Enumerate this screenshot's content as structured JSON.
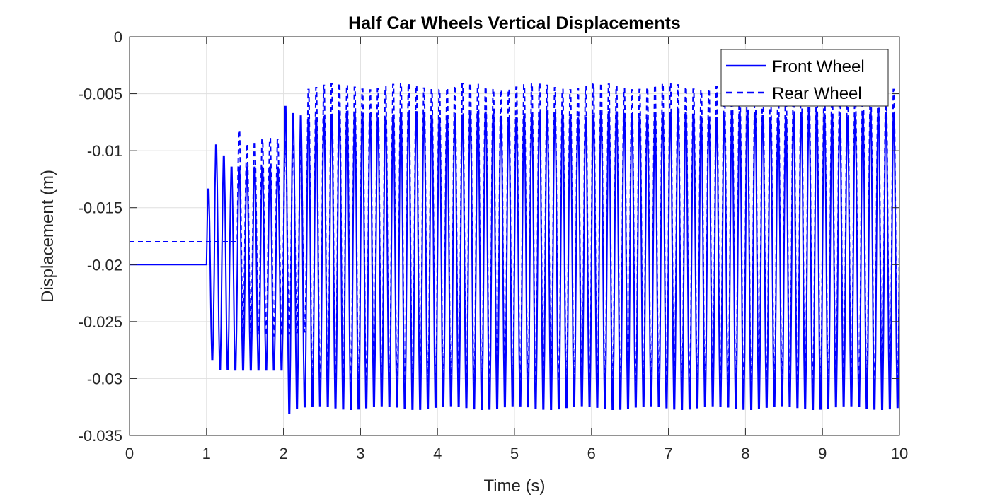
{
  "chart_data": {
    "type": "line",
    "title": "Half Car Wheels Vertical Displacements",
    "xlabel": "Time (s)",
    "ylabel": "Displacement (m)",
    "xlim": [
      0,
      10
    ],
    "ylim": [
      -0.035,
      0
    ],
    "xticks": [
      0,
      1,
      2,
      3,
      4,
      5,
      6,
      7,
      8,
      9,
      10
    ],
    "xtick_labels": [
      "0",
      "1",
      "2",
      "3",
      "4",
      "5",
      "6",
      "7",
      "8",
      "9",
      "10"
    ],
    "yticks": [
      0,
      -0.005,
      -0.01,
      -0.015,
      -0.02,
      -0.025,
      -0.03,
      -0.035
    ],
    "ytick_labels": [
      "0",
      "-0.005",
      "-0.01",
      "-0.015",
      "-0.02",
      "-0.025",
      "-0.03",
      "-0.035"
    ],
    "grid": true,
    "legend_position": "top-right",
    "series": [
      {
        "name": "Front Wheel",
        "style": "solid",
        "color": "#0000ff",
        "initial_value": -0.02,
        "excitation_start": 1.0,
        "segments": [
          {
            "t_start": 1.0,
            "t_end": 2.0,
            "period": 0.1,
            "peaks": [
              -0.013,
              -0.009,
              -0.01,
              -0.011,
              -0.011,
              -0.011,
              -0.011,
              -0.011,
              -0.011,
              -0.011
            ],
            "troughs": [
              -0.0287,
              -0.0297,
              -0.0297,
              -0.0297,
              -0.0297,
              -0.0297,
              -0.0297,
              -0.0297,
              -0.0297,
              -0.0297
            ]
          },
          {
            "t_start": 2.0,
            "t_end": 10.0,
            "period": 0.1,
            "peak_first": -0.0057,
            "peak": -0.0062,
            "trough_first": -0.0336,
            "trough": -0.0332
          }
        ]
      },
      {
        "name": "Rear Wheel",
        "style": "dashed",
        "color": "#0000ff",
        "initial_value": -0.018,
        "excitation_start": 1.4,
        "segments": [
          {
            "t_start": 1.4,
            "t_end": 2.3,
            "period": 0.1,
            "peak_first": -0.0075,
            "peak": -0.0088,
            "trough": -0.0265
          },
          {
            "t_start": 2.3,
            "t_end": 10.0,
            "period": 0.1,
            "peak": -0.0037,
            "trough": -0.0315
          }
        ]
      }
    ]
  }
}
